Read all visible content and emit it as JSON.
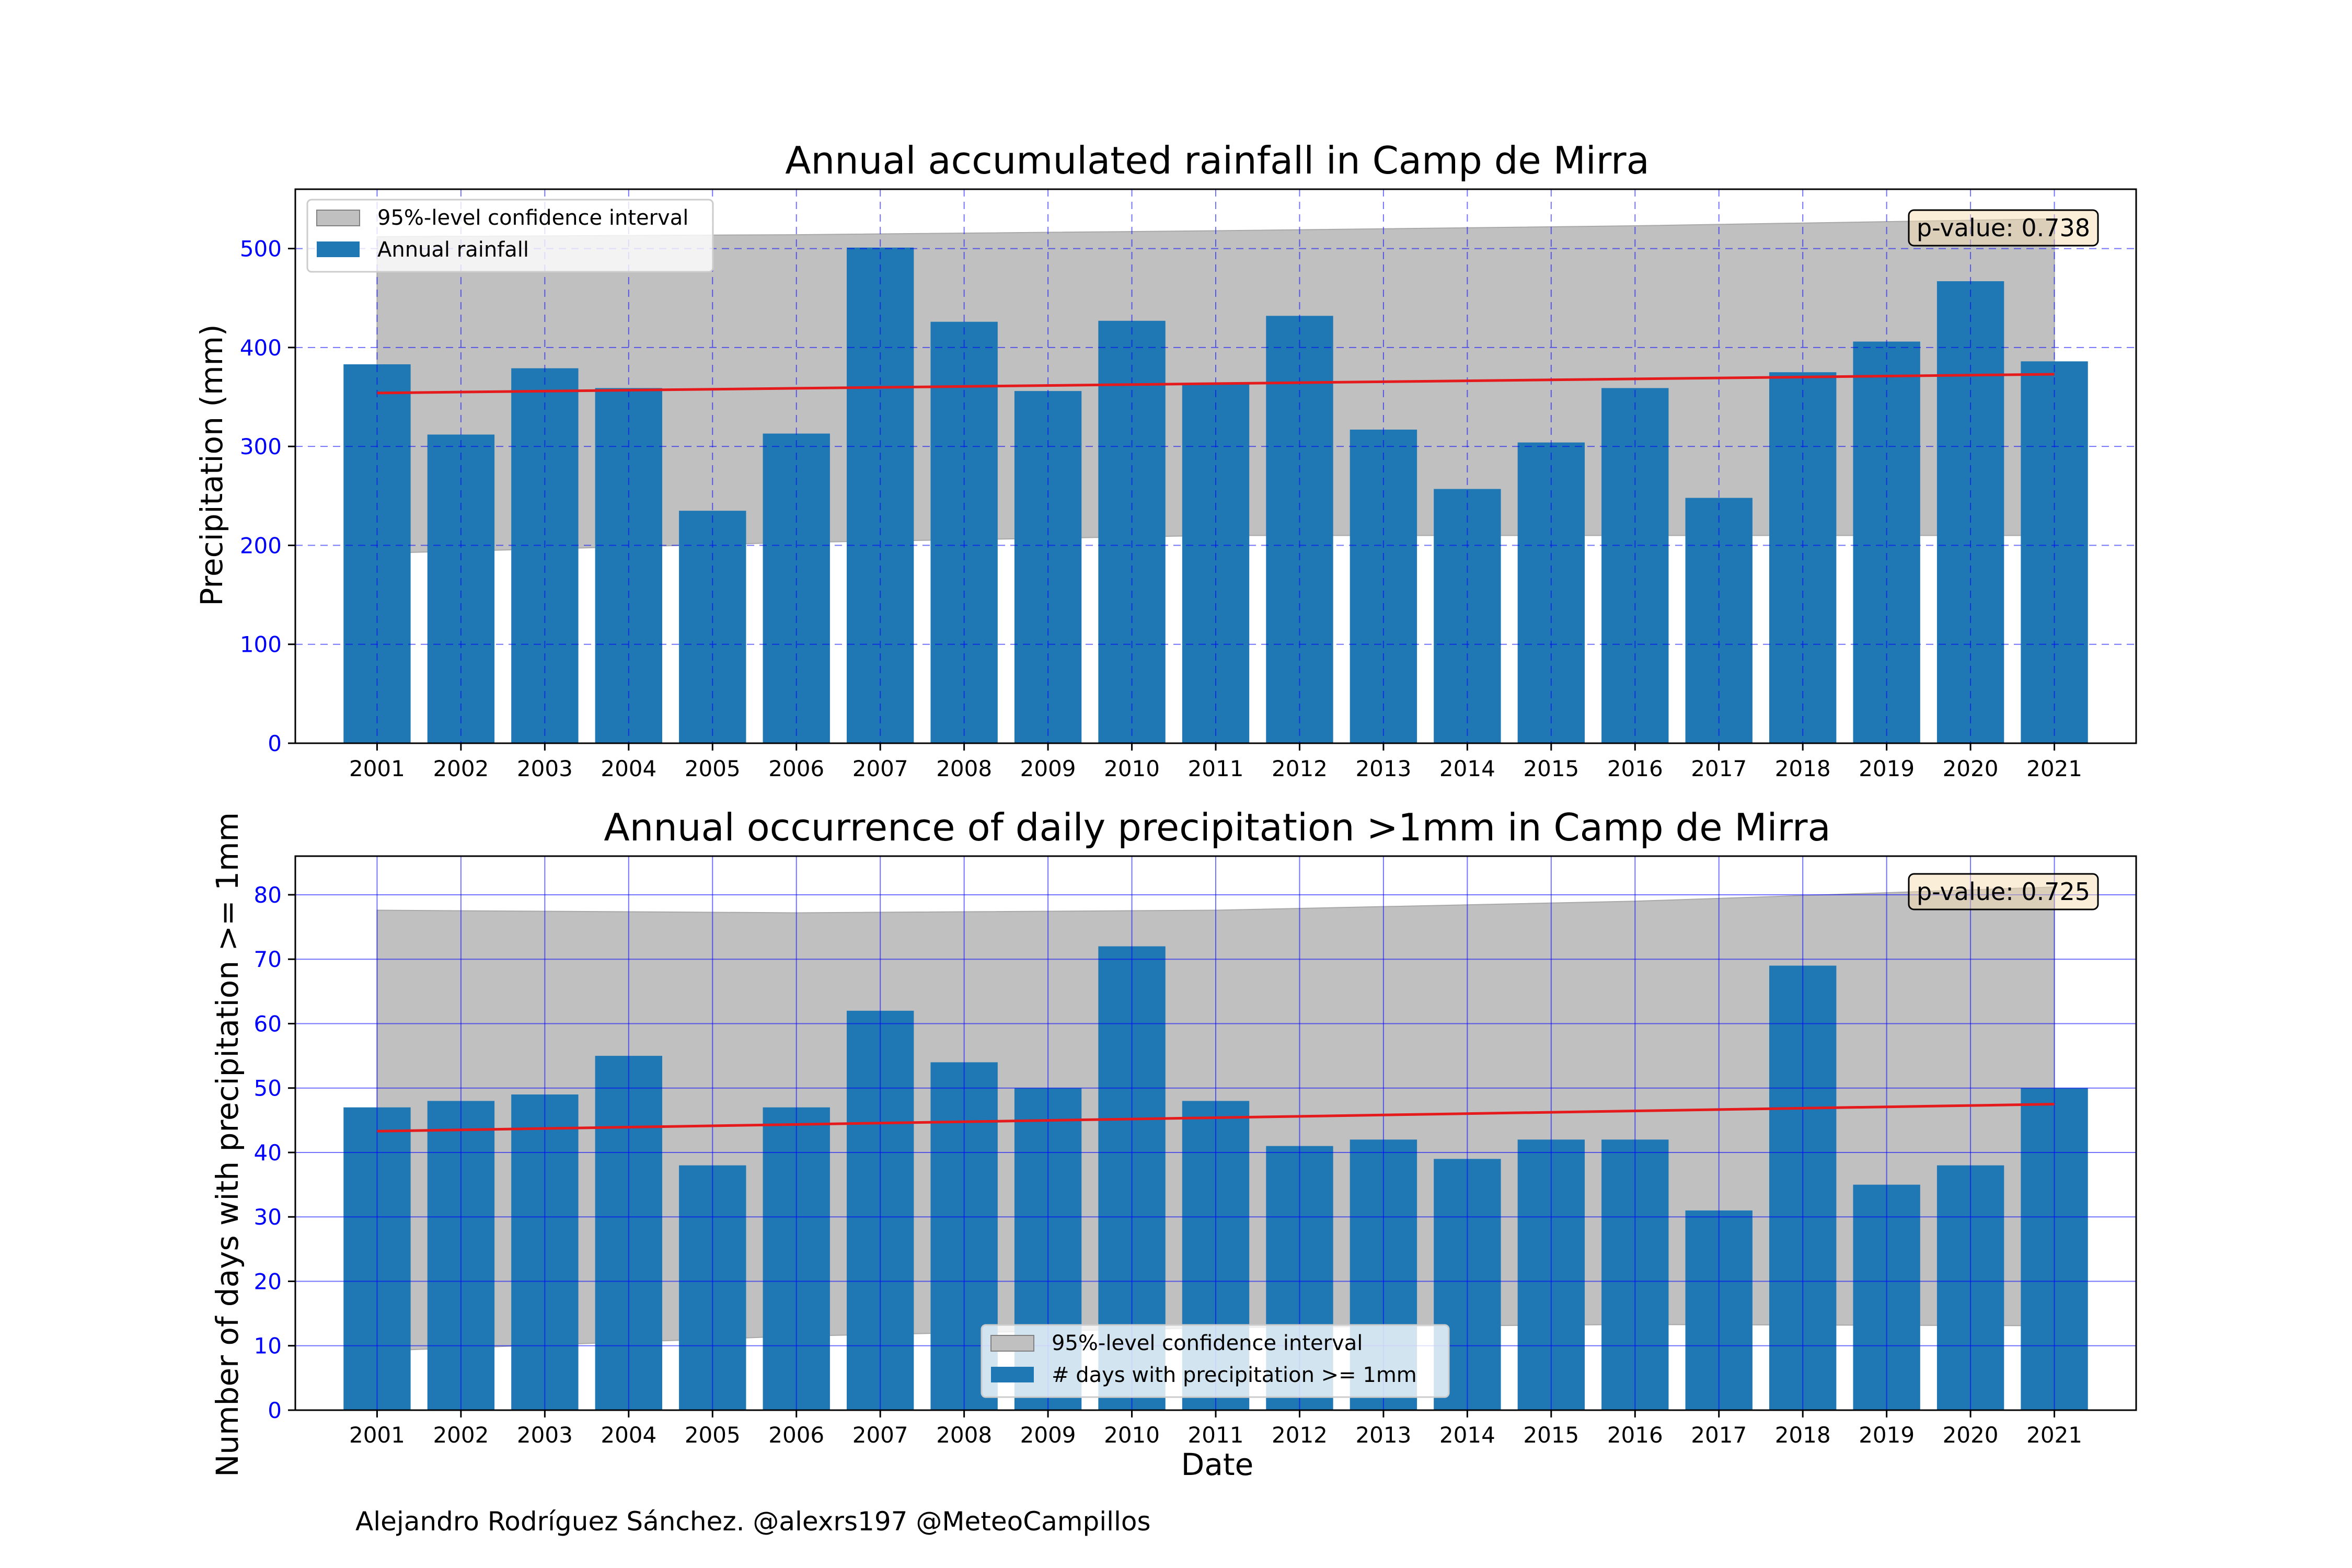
{
  "credit": "Alejandro Rodríguez Sánchez. @alexrs197 @MeteoCampillos",
  "chart_data": [
    {
      "type": "bar",
      "title": "Annual accumulated rainfall in Camp de Mirra",
      "xlabel": "",
      "ylabel": "Precipitation (mm)",
      "ylim": [
        0,
        560
      ],
      "yticks": [
        0,
        100,
        200,
        300,
        400,
        500
      ],
      "categories": [
        "2001",
        "2002",
        "2003",
        "2004",
        "2005",
        "2006",
        "2007",
        "2008",
        "2009",
        "2010",
        "2011",
        "2012",
        "2013",
        "2014",
        "2015",
        "2016",
        "2017",
        "2018",
        "2019",
        "2020",
        "2021"
      ],
      "series": [
        {
          "name": "Annual rainfall",
          "color": "#1f77b4",
          "values": [
            383,
            312,
            379,
            359,
            235,
            313,
            501,
            426,
            356,
            427,
            363,
            432,
            317,
            257,
            304,
            359,
            248,
            375,
            406,
            467,
            386
          ]
        }
      ],
      "trend": {
        "color": "#e41a1c",
        "start": 354,
        "end": 373
      },
      "confidence_band": {
        "name": "95%-level confidence interval",
        "color": "#c0c0c0",
        "lower": [
          192,
          203,
          210,
          210,
          210
        ],
        "upper": [
          512,
          514,
          518,
          523,
          530
        ],
        "x_at": [
          "2001",
          "2006",
          "2011",
          "2016",
          "2021"
        ]
      },
      "pvalue": "p-value: 0.738",
      "grid": {
        "on": true,
        "color": "#0000ff",
        "style": "dashed"
      },
      "legend_position": "upper left"
    },
    {
      "type": "bar",
      "title": "Annual occurrence of daily precipitation >1mm in Camp de Mirra",
      "xlabel": "Date",
      "ylabel": "Number of days with precipitation >= 1mm",
      "ylim": [
        0,
        86
      ],
      "yticks": [
        0,
        10,
        20,
        30,
        40,
        50,
        60,
        70,
        80
      ],
      "categories": [
        "2001",
        "2002",
        "2003",
        "2004",
        "2005",
        "2006",
        "2007",
        "2008",
        "2009",
        "2010",
        "2011",
        "2012",
        "2013",
        "2014",
        "2015",
        "2016",
        "2017",
        "2018",
        "2019",
        "2020",
        "2021"
      ],
      "series": [
        {
          "name": "# days with precipitation >= 1mm",
          "color": "#1f77b4",
          "values": [
            47,
            48,
            49,
            55,
            38,
            47,
            62,
            54,
            50,
            72,
            48,
            41,
            42,
            39,
            42,
            42,
            31,
            69,
            35,
            38,
            50
          ]
        }
      ],
      "trend": {
        "color": "#e41a1c",
        "start": 43.3,
        "end": 47.5
      },
      "confidence_band": {
        "name": "95%-level confidence interval",
        "color": "#c0c0c0",
        "lower": [
          9.2,
          11.5,
          12.8,
          13.3,
          13.1
        ],
        "upper": [
          77.6,
          77.2,
          77.6,
          79.0,
          81.2
        ],
        "x_at": [
          "2001",
          "2006",
          "2011",
          "2016",
          "2021"
        ]
      },
      "pvalue": "p-value: 0.725",
      "grid": {
        "on": true,
        "color": "#0000ff",
        "style": "solid"
      },
      "legend_position": "lower center"
    }
  ]
}
